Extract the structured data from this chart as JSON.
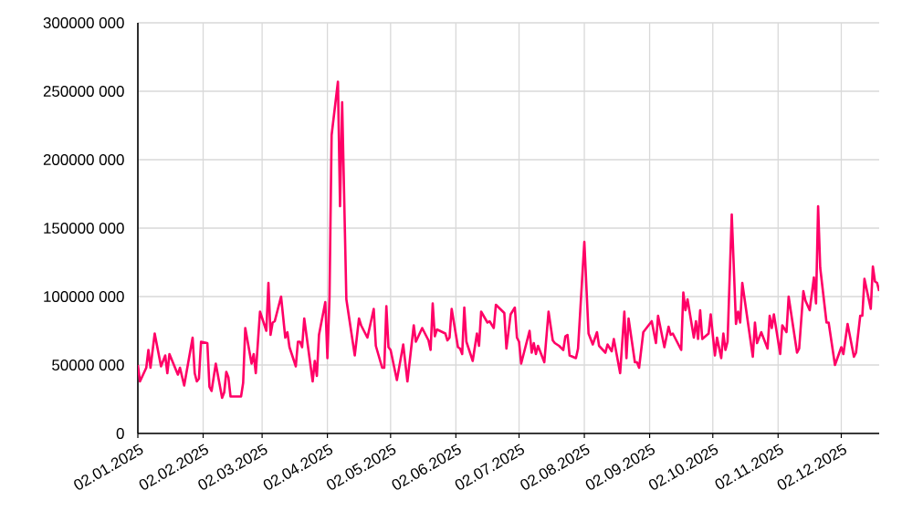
{
  "chart_data": {
    "type": "line",
    "x": [
      "2025-01-02",
      "2025-01-03",
      "2025-01-06",
      "2025-01-07",
      "2025-01-08",
      "2025-01-10",
      "2025-01-13",
      "2025-01-15",
      "2025-01-16",
      "2025-01-17",
      "2025-01-21",
      "2025-01-22",
      "2025-01-24",
      "2025-01-28",
      "2025-01-29",
      "2025-01-30",
      "2025-01-31",
      "2025-02-01",
      "2025-02-04",
      "2025-02-05",
      "2025-02-06",
      "2025-02-08",
      "2025-02-11",
      "2025-02-12",
      "2025-02-13",
      "2025-02-14",
      "2025-02-15",
      "2025-02-20",
      "2025-02-21",
      "2025-02-22",
      "2025-02-25",
      "2025-02-26",
      "2025-02-27",
      "2025-03-01",
      "2025-03-04",
      "2025-03-05",
      "2025-03-06",
      "2025-03-07",
      "2025-03-08",
      "2025-03-11",
      "2025-03-13",
      "2025-03-14",
      "2025-03-15",
      "2025-03-18",
      "2025-03-19",
      "2025-03-20",
      "2025-03-21",
      "2025-03-22",
      "2025-03-24",
      "2025-03-26",
      "2025-03-27",
      "2025-03-28",
      "2025-03-29",
      "2025-04-01",
      "2025-04-02",
      "2025-04-03",
      "2025-04-04",
      "2025-04-07",
      "2025-04-08",
      "2025-04-09",
      "2025-04-11",
      "2025-04-15",
      "2025-04-17",
      "2025-04-18",
      "2025-04-21",
      "2025-04-24",
      "2025-04-25",
      "2025-04-28",
      "2025-04-29",
      "2025-04-30",
      "2025-05-01",
      "2025-05-02",
      "2025-05-05",
      "2025-05-08",
      "2025-05-10",
      "2025-05-13",
      "2025-05-14",
      "2025-05-17",
      "2025-05-20",
      "2025-05-21",
      "2025-05-22",
      "2025-05-23",
      "2025-05-24",
      "2025-05-28",
      "2025-05-29",
      "2025-05-30",
      "2025-05-31",
      "2025-06-03",
      "2025-06-04",
      "2025-06-05",
      "2025-06-06",
      "2025-06-07",
      "2025-06-10",
      "2025-06-12",
      "2025-06-13",
      "2025-06-14",
      "2025-06-17",
      "2025-06-18",
      "2025-06-20",
      "2025-06-21",
      "2025-06-25",
      "2025-06-26",
      "2025-06-28",
      "2025-06-30",
      "2025-07-01",
      "2025-07-02",
      "2025-07-03",
      "2025-07-07",
      "2025-07-08",
      "2025-07-09",
      "2025-07-10",
      "2025-07-11",
      "2025-07-14",
      "2025-07-16",
      "2025-07-18",
      "2025-07-19",
      "2025-07-21",
      "2025-07-23",
      "2025-07-24",
      "2025-07-25",
      "2025-07-26",
      "2025-07-29",
      "2025-07-30",
      "2025-08-02",
      "2025-08-04",
      "2025-08-06",
      "2025-08-08",
      "2025-08-09",
      "2025-08-12",
      "2025-08-13",
      "2025-08-15",
      "2025-08-16",
      "2025-08-19",
      "2025-08-21",
      "2025-08-22",
      "2025-08-23",
      "2025-08-26",
      "2025-08-27",
      "2025-08-28",
      "2025-08-30",
      "2025-09-03",
      "2025-09-05",
      "2025-09-06",
      "2025-09-09",
      "2025-09-11",
      "2025-09-12",
      "2025-09-13",
      "2025-09-17",
      "2025-09-18",
      "2025-09-19",
      "2025-09-20",
      "2025-09-23",
      "2025-09-24",
      "2025-09-25",
      "2025-09-26",
      "2025-09-27",
      "2025-09-30",
      "2025-10-01",
      "2025-10-03",
      "2025-10-04",
      "2025-10-06",
      "2025-10-07",
      "2025-10-08",
      "2025-10-09",
      "2025-10-11",
      "2025-10-13",
      "2025-10-14",
      "2025-10-15",
      "2025-10-16",
      "2025-10-21",
      "2025-10-22",
      "2025-10-23",
      "2025-10-25",
      "2025-10-28",
      "2025-10-29",
      "2025-10-30",
      "2025-10-31",
      "2025-11-03",
      "2025-11-04",
      "2025-11-06",
      "2025-11-07",
      "2025-11-11",
      "2025-11-12",
      "2025-11-14",
      "2025-11-15",
      "2025-11-17",
      "2025-11-19",
      "2025-11-20",
      "2025-11-21",
      "2025-11-22",
      "2025-11-25",
      "2025-11-26",
      "2025-11-29",
      "2025-12-02",
      "2025-12-03",
      "2025-12-05",
      "2025-12-08",
      "2025-12-09",
      "2025-12-11",
      "2025-12-12",
      "2025-12-13",
      "2025-12-16",
      "2025-12-17",
      "2025-12-18",
      "2025-12-19",
      "2025-12-20"
    ],
    "values": [
      50000000,
      38000000,
      48000000,
      61000000,
      48000000,
      73000000,
      49000000,
      57000000,
      44000000,
      58000000,
      43000000,
      48000000,
      35000000,
      70000000,
      44000000,
      38000000,
      40000000,
      67000000,
      66000000,
      34000000,
      31000000,
      51000000,
      26000000,
      30000000,
      45000000,
      41000000,
      27000000,
      27000000,
      37000000,
      77000000,
      51000000,
      58000000,
      44000000,
      89000000,
      75000000,
      110000000,
      72000000,
      81000000,
      82000000,
      100000000,
      70000000,
      74000000,
      63000000,
      49000000,
      67000000,
      67000000,
      63000000,
      84000000,
      61000000,
      38000000,
      53000000,
      42000000,
      72000000,
      96000000,
      55000000,
      99000000,
      218000000,
      257000000,
      166000000,
      242000000,
      98000000,
      57000000,
      84000000,
      79000000,
      70000000,
      91000000,
      64000000,
      48000000,
      48000000,
      93000000,
      63000000,
      61000000,
      39000000,
      65000000,
      38000000,
      79000000,
      67000000,
      77000000,
      68000000,
      61000000,
      95000000,
      71000000,
      76000000,
      73000000,
      68000000,
      70000000,
      91000000,
      63000000,
      62000000,
      58000000,
      92000000,
      67000000,
      53000000,
      73000000,
      64000000,
      89000000,
      81000000,
      82000000,
      77000000,
      94000000,
      88000000,
      62000000,
      87000000,
      92000000,
      70000000,
      67000000,
      51000000,
      75000000,
      59000000,
      66000000,
      58000000,
      64000000,
      52000000,
      89000000,
      68000000,
      66000000,
      64000000,
      61000000,
      71000000,
      72000000,
      57000000,
      55000000,
      62000000,
      140000000,
      73000000,
      65000000,
      74000000,
      64000000,
      59000000,
      65000000,
      60000000,
      69000000,
      44000000,
      89000000,
      55000000,
      84000000,
      52000000,
      52000000,
      48000000,
      74000000,
      82000000,
      66000000,
      86000000,
      63000000,
      78000000,
      72000000,
      73000000,
      61000000,
      103000000,
      90000000,
      98000000,
      70000000,
      82000000,
      69000000,
      90000000,
      69000000,
      73000000,
      87000000,
      57000000,
      70000000,
      55000000,
      73000000,
      61000000,
      67000000,
      160000000,
      80000000,
      89000000,
      81000000,
      110000000,
      56000000,
      81000000,
      66000000,
      74000000,
      62000000,
      86000000,
      77000000,
      87000000,
      58000000,
      79000000,
      74000000,
      100000000,
      59000000,
      62000000,
      104000000,
      97000000,
      90000000,
      114000000,
      95000000,
      166000000,
      121000000,
      81000000,
      81000000,
      50000000,
      63000000,
      58000000,
      80000000,
      56000000,
      59000000,
      86000000,
      86000000,
      113000000,
      91000000,
      122000000,
      111000000,
      110000000,
      104000000
    ],
    "color": "#ff0066",
    "xlim": [
      "2025-01-02",
      "2025-12-20"
    ],
    "xticks": [
      {
        "value": "2025-01-02",
        "label": "02.01.2025"
      },
      {
        "value": "2025-02-02",
        "label": "02.02.2025"
      },
      {
        "value": "2025-03-02",
        "label": "02.03.2025"
      },
      {
        "value": "2025-04-02",
        "label": "02.04.2025"
      },
      {
        "value": "2025-05-02",
        "label": "02.05.2025"
      },
      {
        "value": "2025-06-02",
        "label": "02.06.2025"
      },
      {
        "value": "2025-07-02",
        "label": "02.07.2025"
      },
      {
        "value": "2025-08-02",
        "label": "02.08.2025"
      },
      {
        "value": "2025-09-02",
        "label": "02.09.2025"
      },
      {
        "value": "2025-10-02",
        "label": "02.10.2025"
      },
      {
        "value": "2025-11-02",
        "label": "02.11.2025"
      },
      {
        "value": "2025-12-02",
        "label": "02.12.2025"
      }
    ],
    "ylim": [
      0,
      300000000
    ],
    "yticks": [
      0,
      {
        "value": 50000000,
        "label": "50000 000"
      },
      {
        "value": 100000000,
        "label": "100000 000"
      },
      {
        "value": 150000000,
        "label": "150000 000"
      },
      {
        "value": 200000000,
        "label": "200000 000"
      },
      {
        "value": 250000000,
        "label": "250000 000"
      },
      {
        "value": 300000000,
        "label": "300000 000"
      }
    ],
    "grid": true
  }
}
